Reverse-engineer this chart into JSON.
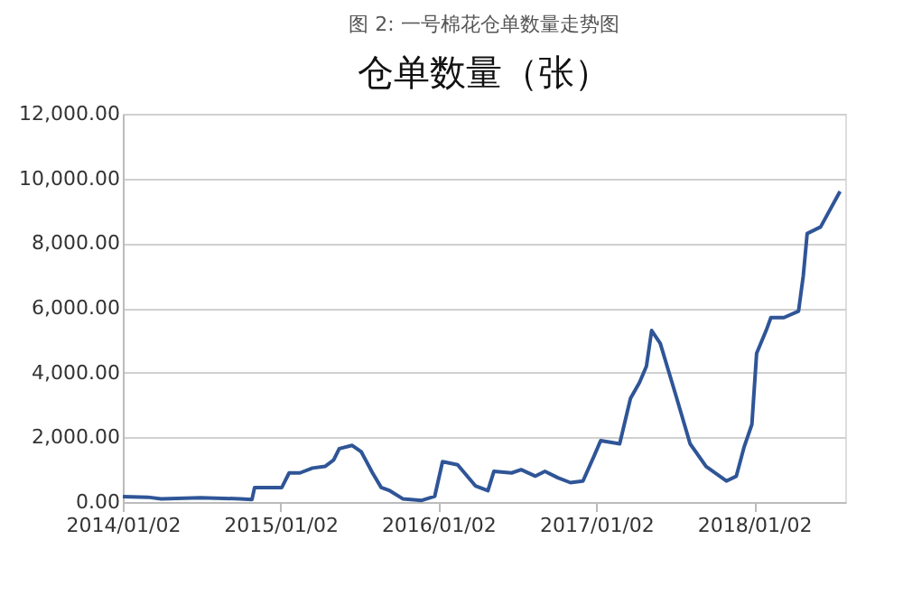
{
  "chart_data": {
    "type": "line",
    "title": "图 2: 一号棉花仓单数量走势图",
    "subtitle": "仓单数量（张）",
    "x": [
      "2014-01-02",
      "2014-03-01",
      "2014-04-01",
      "2014-07-01",
      "2014-10-01",
      "2014-10-28",
      "2014-11-03",
      "2015-01-05",
      "2015-01-22",
      "2015-02-16",
      "2015-03-17",
      "2015-04-15",
      "2015-05-05",
      "2015-05-18",
      "2015-06-17",
      "2015-07-08",
      "2015-08-03",
      "2015-08-23",
      "2015-09-12",
      "2015-10-12",
      "2015-11-25",
      "2015-12-25",
      "2016-01-12",
      "2016-02-16",
      "2016-03-28",
      "2016-04-26",
      "2016-05-10",
      "2016-06-20",
      "2016-07-12",
      "2016-08-14",
      "2016-09-05",
      "2016-10-05",
      "2016-11-03",
      "2016-12-02",
      "2016-12-27",
      "2017-01-12",
      "2017-02-25",
      "2017-03-22",
      "2017-04-12",
      "2017-04-28",
      "2017-05-10",
      "2017-05-30",
      "2017-07-05",
      "2017-08-07",
      "2017-09-13",
      "2017-10-30",
      "2017-11-22",
      "2017-12-10",
      "2017-12-28",
      "2018-01-08",
      "2018-01-30",
      "2018-02-10",
      "2018-03-12",
      "2018-04-15",
      "2018-04-26",
      "2018-05-05",
      "2018-06-05",
      "2018-07-20"
    ],
    "series": [
      {
        "color": "#2f5597",
        "values": [
          170,
          150,
          100,
          130,
          100,
          80,
          450,
          450,
          900,
          900,
          1050,
          1100,
          1300,
          1650,
          1750,
          1550,
          900,
          450,
          350,
          100,
          50,
          180,
          1250,
          1150,
          500,
          350,
          950,
          900,
          1000,
          800,
          950,
          750,
          600,
          650,
          1400,
          1900,
          1800,
          3200,
          3700,
          4200,
          5300,
          4900,
          3300,
          1800,
          1100,
          650,
          800,
          1700,
          2400,
          4600,
          5300,
          5700,
          5700,
          5900,
          7000,
          8300,
          8500,
          9600
        ]
      }
    ],
    "xlim": [
      "2014-01-02",
      "2018-08-01"
    ],
    "xticks": [
      {
        "value": "2014-01-02",
        "label": "2014/01/02"
      },
      {
        "value": "2015-01-02",
        "label": "2015/01/02"
      },
      {
        "value": "2016-01-02",
        "label": "2016/01/02"
      },
      {
        "value": "2017-01-02",
        "label": "2017/01/02"
      },
      {
        "value": "2018-01-02",
        "label": "2018/01/02"
      }
    ],
    "ylim": [
      0,
      12000
    ],
    "yticks": [
      {
        "value": 0,
        "label": "0.00"
      },
      {
        "value": 2000,
        "label": "2,000.00"
      },
      {
        "value": 4000,
        "label": "4,000.00"
      },
      {
        "value": 6000,
        "label": "6,000.00"
      },
      {
        "value": 8000,
        "label": "8,000.00"
      },
      {
        "value": 10000,
        "label": "10,000.00"
      },
      {
        "value": 12000,
        "label": "12,000.00"
      }
    ],
    "grid": "y",
    "marker": "none",
    "line_style": "solid"
  }
}
